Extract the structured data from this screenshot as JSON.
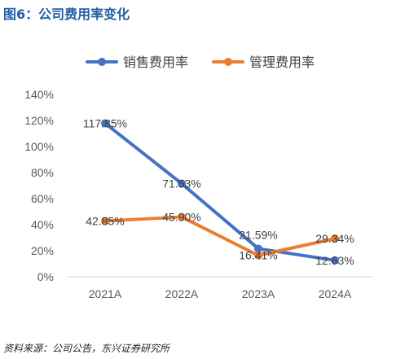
{
  "figure": {
    "title": "图6：公司费用率变化",
    "source": "资料来源：公司公告，东兴证券研究所"
  },
  "chart_data": {
    "type": "line",
    "title": "",
    "xlabel": "",
    "ylabel": "",
    "categories": [
      "2021A",
      "2022A",
      "2023A",
      "2024A"
    ],
    "ylim": [
      0,
      140
    ],
    "yticks": [
      0,
      20,
      40,
      60,
      80,
      100,
      120,
      140
    ],
    "ytick_labels": [
      "0%",
      "20%",
      "40%",
      "60%",
      "80%",
      "100%",
      "120%",
      "140%"
    ],
    "grid": false,
    "legend_position": "top",
    "series": [
      {
        "name": "销售费用率",
        "color": "#4472c4",
        "values": [
          117.85,
          71.53,
          21.59,
          12.63
        ],
        "labels": [
          "117.85%",
          "71.53%",
          "21.59%",
          "12.63%"
        ],
        "label_positions": [
          "center",
          "center",
          "above",
          "center"
        ]
      },
      {
        "name": "管理费用率",
        "color": "#ed7d31",
        "values": [
          42.85,
          45.9,
          16.41,
          29.34
        ],
        "labels": [
          "42.85%",
          "45.90%",
          "16.41%",
          "29.34%"
        ],
        "label_positions": [
          "center",
          "center",
          "center",
          "center"
        ]
      }
    ]
  }
}
